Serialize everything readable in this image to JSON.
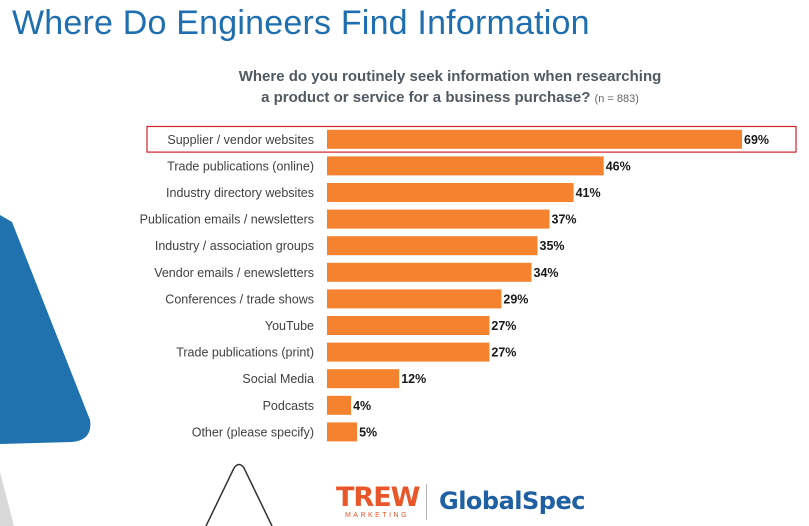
{
  "page": {
    "title": "Where Do Engineers Find Information"
  },
  "chart_data": {
    "type": "bar",
    "orientation": "horizontal",
    "title": "Where do you routinely seek information when researching a product or service for a business purchase?",
    "title_line1": "Where do you routinely seek information when researching",
    "title_line2": "a product or service for a business purchase?",
    "sample_note": "(n = 883)",
    "categories": [
      "Supplier / vendor websites",
      "Trade publications (online)",
      "Industry directory websites",
      "Publication emails / newsletters",
      "Industry / association groups",
      "Vendor emails / enewsletters",
      "Conferences / trade shows",
      "YouTube",
      "Trade publications (print)",
      "Social Media",
      "Podcasts",
      "Other (please specify)"
    ],
    "values": [
      69,
      46,
      41,
      37,
      35,
      34,
      29,
      27,
      27,
      12,
      4,
      5
    ],
    "value_labels": [
      "69%",
      "46%",
      "41%",
      "37%",
      "35%",
      "34%",
      "29%",
      "27%",
      "27%",
      "12%",
      "4%",
      "5%"
    ],
    "unit": "%",
    "xlim": [
      0,
      69
    ],
    "grid": false,
    "highlighted_category": "Supplier / vendor websites",
    "colors": {
      "bar": "#f4822f",
      "highlight_box": "#d0202a",
      "title": "#1f6fb0",
      "decor_blue": "#1f72ad"
    }
  },
  "logos": {
    "trew_word": "TREW",
    "trew_sub": "MARKETING",
    "globalspec": "GlobalSpec"
  }
}
